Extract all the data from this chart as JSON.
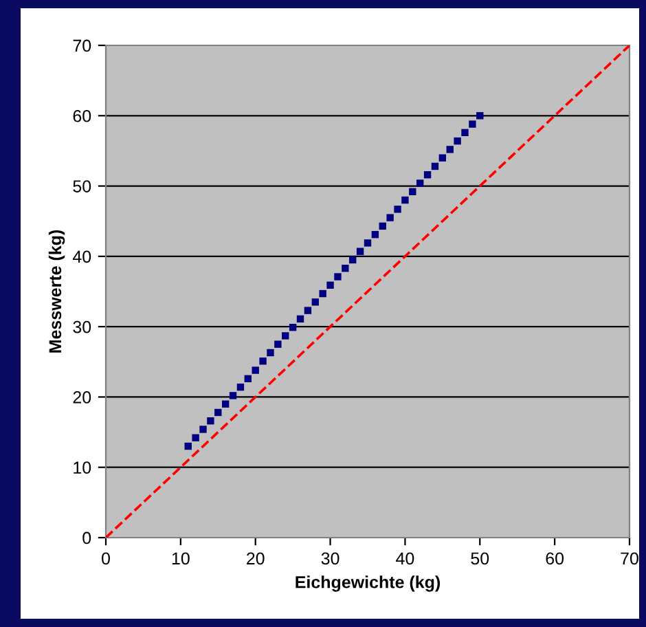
{
  "chart_data": {
    "type": "scatter",
    "xlabel": "Eichgewichte (kg)",
    "ylabel": "Messwerte (kg)",
    "xlim": [
      0,
      70
    ],
    "ylim": [
      0,
      70
    ],
    "xticks": [
      0,
      10,
      20,
      30,
      40,
      50,
      60,
      70
    ],
    "yticks": [
      0,
      10,
      20,
      30,
      40,
      50,
      60,
      70
    ],
    "grid": "y",
    "legend": false,
    "series": [
      {
        "color": "#000080",
        "marker": "square",
        "x": [
          11,
          12,
          13,
          14,
          15,
          16,
          17,
          18,
          19,
          20,
          21,
          22,
          23,
          24,
          25,
          26,
          27,
          28,
          29,
          30,
          31,
          32,
          33,
          34,
          35,
          36,
          37,
          38,
          39,
          40,
          41,
          42,
          43,
          44,
          45,
          46,
          47,
          48,
          49,
          50
        ],
        "values": [
          13.0,
          14.2,
          15.4,
          16.6,
          17.8,
          19.0,
          20.2,
          21.4,
          22.6,
          23.8,
          25.1,
          26.3,
          27.5,
          28.7,
          29.9,
          31.1,
          32.3,
          33.5,
          34.7,
          35.9,
          37.1,
          38.3,
          39.5,
          40.7,
          41.9,
          43.1,
          44.3,
          45.5,
          46.7,
          48.0,
          49.2,
          50.4,
          51.6,
          52.8,
          54.0,
          55.2,
          56.4,
          57.6,
          58.8,
          60.0
        ]
      },
      {
        "type": "line",
        "color": "#ff0000",
        "line_style": "dashed",
        "marker": "none",
        "x": [
          0,
          70
        ],
        "values": [
          0,
          70
        ]
      }
    ]
  }
}
